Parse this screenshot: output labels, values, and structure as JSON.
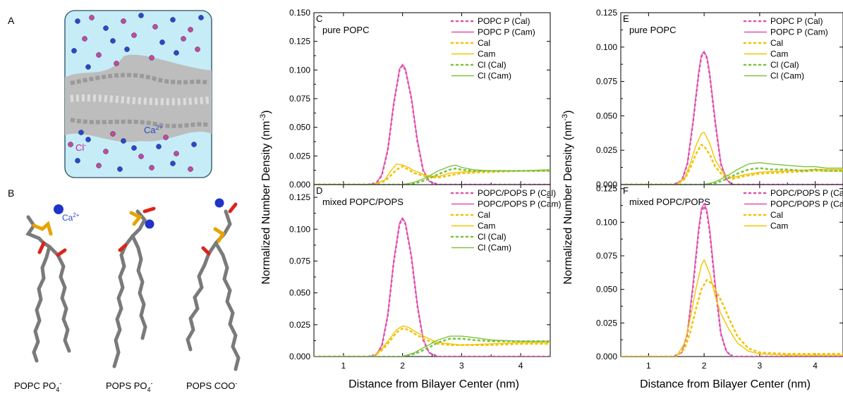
{
  "panel_labels": {
    "a": "A",
    "b": "B"
  },
  "illustration_labels": {
    "ca_ion": "Ca2+",
    "cl_ion": "Cl-",
    "ca_ion_b": "Ca2+",
    "lipid_captions": [
      "POPC PO4-",
      "POPS PO4-",
      "POPS COO-"
    ]
  },
  "colors": {
    "popc": "#e052ad",
    "cal": "#f2c400",
    "cl": "#7cc242",
    "water": "#bde7f4",
    "ca": "#2a48c8",
    "cl_ion": "#c04b9a",
    "lipid": "#cfcfcf"
  },
  "shared": {
    "ylabel_main": "Normalized Number Density (nm",
    "ylabel_sup": "-3",
    "ylabel_tail": ")",
    "xlabel": "Distance from Bilayer Center (nm)"
  },
  "chart_data": [
    {
      "id": "C",
      "type": "line",
      "panel_label": "C",
      "annotation": "pure POPC",
      "xlim": [
        0.5,
        4.5
      ],
      "ylim": [
        0,
        0.15
      ],
      "xticks": [
        1,
        2,
        3,
        4
      ],
      "yticks": [
        0,
        0.025,
        0.05,
        0.075,
        0.1,
        0.125,
        0.15
      ],
      "ytick_labels": [
        "0.000",
        "0.025",
        "0.050",
        "0.075",
        "0.100",
        "0.125",
        "0.150"
      ],
      "xtick_labels": [
        "1",
        "2",
        "3",
        "4"
      ],
      "series": [
        {
          "name": "POPC P (Cal)",
          "color_key": "popc",
          "dashed": true,
          "x": [
            0.5,
            1.4,
            1.55,
            1.65,
            1.75,
            1.85,
            1.95,
            2.0,
            2.05,
            2.15,
            2.25,
            2.35,
            2.45,
            2.6,
            4.5
          ],
          "y": [
            0,
            0,
            0.001,
            0.008,
            0.03,
            0.07,
            0.1,
            0.104,
            0.1,
            0.075,
            0.038,
            0.012,
            0.003,
            0,
            0
          ]
        },
        {
          "name": "POPC P (Cam)",
          "color_key": "popc",
          "dashed": false,
          "x": [
            0.5,
            1.4,
            1.55,
            1.65,
            1.75,
            1.85,
            1.95,
            2.0,
            2.05,
            2.15,
            2.25,
            2.35,
            2.45,
            2.6,
            4.5
          ],
          "y": [
            0,
            0,
            0.001,
            0.009,
            0.031,
            0.071,
            0.101,
            0.105,
            0.101,
            0.076,
            0.039,
            0.013,
            0.003,
            0,
            0
          ]
        },
        {
          "name": "Cal",
          "color_key": "cal",
          "dashed": true,
          "x": [
            0.5,
            1.5,
            1.7,
            1.8,
            1.9,
            2.0,
            2.1,
            2.2,
            2.4,
            2.6,
            2.8,
            3.0,
            3.5,
            4.0,
            4.5
          ],
          "y": [
            0,
            0,
            0.003,
            0.008,
            0.013,
            0.016,
            0.013,
            0.01,
            0.007,
            0.006,
            0.008,
            0.01,
            0.011,
            0.012,
            0.012
          ]
        },
        {
          "name": "Cam",
          "color_key": "cal",
          "dashed": false,
          "x": [
            0.5,
            1.5,
            1.7,
            1.8,
            1.9,
            2.0,
            2.1,
            2.2,
            2.4,
            2.6,
            2.8,
            3.0,
            3.5,
            4.0,
            4.5
          ],
          "y": [
            0,
            0,
            0.004,
            0.012,
            0.018,
            0.017,
            0.015,
            0.012,
            0.008,
            0.007,
            0.01,
            0.011,
            0.012,
            0.012,
            0.013
          ]
        },
        {
          "name": "Cl (Cal)",
          "color_key": "cl",
          "dashed": true,
          "x": [
            0.5,
            2.0,
            2.2,
            2.4,
            2.6,
            2.8,
            2.9,
            3.0,
            3.2,
            3.5,
            4.0,
            4.5
          ],
          "y": [
            0,
            0,
            0.001,
            0.004,
            0.009,
            0.013,
            0.014,
            0.013,
            0.012,
            0.012,
            0.012,
            0.012
          ]
        },
        {
          "name": "Cl (Cam)",
          "color_key": "cl",
          "dashed": false,
          "x": [
            0.5,
            2.0,
            2.2,
            2.4,
            2.6,
            2.8,
            2.9,
            3.0,
            3.2,
            3.5,
            4.0,
            4.5
          ],
          "y": [
            0,
            0,
            0.002,
            0.006,
            0.012,
            0.016,
            0.017,
            0.015,
            0.013,
            0.012,
            0.012,
            0.013
          ]
        }
      ]
    },
    {
      "id": "D",
      "type": "line",
      "panel_label": "D",
      "annotation": "mixed POPC/POPS",
      "xlim": [
        0.5,
        4.5
      ],
      "ylim": [
        0,
        0.135
      ],
      "xticks": [
        1,
        2,
        3,
        4
      ],
      "yticks": [
        0,
        0.025,
        0.05,
        0.075,
        0.1,
        0.125
      ],
      "ytick_labels": [
        "0.000",
        "0.025",
        "0.050",
        "0.075",
        "0.100",
        "0.125"
      ],
      "xtick_labels": [
        "1",
        "2",
        "3",
        "4"
      ],
      "series": [
        {
          "name": "POPC/POPS P (Cal)",
          "color_key": "popc",
          "dashed": true,
          "x": [
            0.5,
            1.4,
            1.55,
            1.65,
            1.75,
            1.85,
            1.95,
            2.0,
            2.05,
            2.15,
            2.25,
            2.35,
            2.45,
            2.6,
            4.5
          ],
          "y": [
            0,
            0,
            0.001,
            0.008,
            0.032,
            0.074,
            0.104,
            0.108,
            0.104,
            0.078,
            0.04,
            0.013,
            0.003,
            0,
            0
          ]
        },
        {
          "name": "POPC/POPS P (Cam)",
          "color_key": "popc",
          "dashed": false,
          "x": [
            0.5,
            1.4,
            1.55,
            1.65,
            1.75,
            1.85,
            1.95,
            2.0,
            2.05,
            2.15,
            2.25,
            2.35,
            2.45,
            2.6,
            4.5
          ],
          "y": [
            0,
            0,
            0.001,
            0.009,
            0.033,
            0.075,
            0.105,
            0.109,
            0.105,
            0.079,
            0.041,
            0.014,
            0.003,
            0,
            0
          ]
        },
        {
          "name": "Cal",
          "color_key": "cal",
          "dashed": true,
          "x": [
            0.5,
            1.5,
            1.65,
            1.8,
            1.9,
            2.0,
            2.1,
            2.2,
            2.4,
            2.6,
            2.8,
            3.0,
            3.5,
            4.0,
            4.5
          ],
          "y": [
            0,
            0,
            0.005,
            0.013,
            0.019,
            0.022,
            0.021,
            0.018,
            0.013,
            0.01,
            0.009,
            0.009,
            0.009,
            0.01,
            0.01
          ]
        },
        {
          "name": "Cam",
          "color_key": "cal",
          "dashed": false,
          "x": [
            0.5,
            1.5,
            1.65,
            1.8,
            1.9,
            2.0,
            2.1,
            2.2,
            2.4,
            2.6,
            2.8,
            3.0,
            3.5,
            4.0,
            4.5
          ],
          "y": [
            0,
            0,
            0.006,
            0.015,
            0.021,
            0.024,
            0.023,
            0.02,
            0.015,
            0.011,
            0.01,
            0.009,
            0.01,
            0.011,
            0.011
          ]
        },
        {
          "name": "Cl (Cal)",
          "color_key": "cl",
          "dashed": true,
          "x": [
            0.5,
            2.0,
            2.2,
            2.4,
            2.6,
            2.8,
            3.0,
            3.2,
            3.5,
            4.0,
            4.5
          ],
          "y": [
            0,
            0,
            0.002,
            0.006,
            0.011,
            0.014,
            0.014,
            0.013,
            0.012,
            0.012,
            0.012
          ]
        },
        {
          "name": "Cl (Cam)",
          "color_key": "cl",
          "dashed": false,
          "x": [
            0.5,
            2.0,
            2.2,
            2.4,
            2.6,
            2.8,
            3.0,
            3.2,
            3.5,
            4.0,
            4.5
          ],
          "y": [
            0,
            0,
            0.003,
            0.008,
            0.013,
            0.016,
            0.016,
            0.015,
            0.013,
            0.012,
            0.012
          ]
        }
      ]
    },
    {
      "id": "E",
      "type": "line",
      "panel_label": "E",
      "annotation": "pure POPC",
      "xlim": [
        0.5,
        4.5
      ],
      "ylim": [
        0,
        0.125
      ],
      "xticks": [
        1,
        2,
        3,
        4
      ],
      "yticks": [
        0,
        0.025,
        0.05,
        0.075,
        0.1,
        0.125
      ],
      "ytick_labels": [
        "0.000",
        "0.025",
        "0.050",
        "0.075",
        "0.100",
        "0.125"
      ],
      "xtick_labels": [
        "1",
        "2",
        "3",
        "4"
      ],
      "series": [
        {
          "name": "POPC P (Cal)",
          "color_key": "popc",
          "dashed": true,
          "x": [
            0.5,
            1.45,
            1.6,
            1.7,
            1.8,
            1.9,
            1.95,
            2.0,
            2.05,
            2.1,
            2.2,
            2.3,
            2.4,
            2.5,
            4.5
          ],
          "y": [
            0,
            0,
            0.003,
            0.015,
            0.045,
            0.08,
            0.093,
            0.096,
            0.092,
            0.08,
            0.045,
            0.015,
            0.004,
            0,
            0
          ]
        },
        {
          "name": "POPC P (Cam)",
          "color_key": "popc",
          "dashed": false,
          "x": [
            0.5,
            1.45,
            1.6,
            1.7,
            1.8,
            1.9,
            1.95,
            2.0,
            2.05,
            2.1,
            2.2,
            2.3,
            2.4,
            2.5,
            4.5
          ],
          "y": [
            0,
            0,
            0.003,
            0.016,
            0.046,
            0.081,
            0.094,
            0.097,
            0.093,
            0.081,
            0.046,
            0.016,
            0.004,
            0,
            0
          ]
        },
        {
          "name": "Cal",
          "color_key": "cal",
          "dashed": true,
          "x": [
            0.5,
            1.5,
            1.65,
            1.75,
            1.85,
            1.95,
            2.0,
            2.1,
            2.2,
            2.35,
            2.5,
            2.7,
            3.0,
            3.5,
            4.0,
            4.5
          ],
          "y": [
            0,
            0,
            0.004,
            0.012,
            0.022,
            0.029,
            0.028,
            0.022,
            0.013,
            0.006,
            0.004,
            0.006,
            0.008,
            0.009,
            0.01,
            0.01
          ]
        },
        {
          "name": "Cam",
          "color_key": "cal",
          "dashed": false,
          "x": [
            0.5,
            1.5,
            1.65,
            1.75,
            1.85,
            1.95,
            2.0,
            2.1,
            2.2,
            2.35,
            2.5,
            2.7,
            3.0,
            3.5,
            4.0,
            4.5
          ],
          "y": [
            0,
            0,
            0.005,
            0.015,
            0.028,
            0.037,
            0.038,
            0.03,
            0.018,
            0.008,
            0.005,
            0.007,
            0.009,
            0.01,
            0.011,
            0.011
          ]
        },
        {
          "name": "Cl (Cal)",
          "color_key": "cl",
          "dashed": true,
          "x": [
            0.5,
            2.0,
            2.2,
            2.4,
            2.6,
            2.8,
            3.0,
            3.2,
            3.5,
            3.8,
            4.0,
            4.2,
            4.5
          ],
          "y": [
            0,
            0,
            0.001,
            0.004,
            0.008,
            0.011,
            0.012,
            0.011,
            0.011,
            0.01,
            0.011,
            0.01,
            0.01
          ]
        },
        {
          "name": "Cl (Cam)",
          "color_key": "cl",
          "dashed": false,
          "x": [
            0.5,
            2.0,
            2.2,
            2.4,
            2.6,
            2.8,
            3.0,
            3.2,
            3.5,
            3.8,
            4.0,
            4.2,
            4.5
          ],
          "y": [
            0,
            0,
            0.002,
            0.006,
            0.011,
            0.015,
            0.016,
            0.015,
            0.014,
            0.013,
            0.013,
            0.012,
            0.012
          ]
        }
      ]
    },
    {
      "id": "F",
      "type": "line",
      "panel_label": "F",
      "annotation": "mixed POPC/POPS",
      "xlim": [
        0.5,
        4.5
      ],
      "ylim": [
        0,
        0.128
      ],
      "xticks": [
        1,
        2,
        3,
        4
      ],
      "yticks": [
        0,
        0.025,
        0.05,
        0.075,
        0.1,
        0.125
      ],
      "ytick_labels": [
        "0.000",
        "0.025",
        "0.050",
        "0.075",
        "0.100",
        "0.125"
      ],
      "xtick_labels": [
        "1",
        "2",
        "3",
        "4"
      ],
      "series": [
        {
          "name": "POPC/POPS P (Cal)",
          "color_key": "popc",
          "dashed": true,
          "x": [
            0.5,
            1.45,
            1.6,
            1.7,
            1.8,
            1.9,
            1.95,
            2.0,
            2.05,
            2.1,
            2.2,
            2.3,
            2.4,
            2.5,
            4.5
          ],
          "y": [
            0,
            0,
            0.003,
            0.017,
            0.052,
            0.093,
            0.108,
            0.112,
            0.107,
            0.093,
            0.052,
            0.017,
            0.004,
            0,
            0
          ]
        },
        {
          "name": "POPC/POPS P (Cam)",
          "color_key": "popc",
          "dashed": false,
          "x": [
            0.5,
            1.45,
            1.6,
            1.7,
            1.8,
            1.9,
            1.95,
            2.0,
            2.05,
            2.1,
            2.2,
            2.3,
            2.4,
            2.5,
            4.5
          ],
          "y": [
            0,
            0,
            0.003,
            0.018,
            0.054,
            0.095,
            0.11,
            0.114,
            0.109,
            0.095,
            0.054,
            0.018,
            0.004,
            0,
            0
          ]
        },
        {
          "name": "Cal",
          "color_key": "cal",
          "dashed": true,
          "x": [
            0.5,
            1.5,
            1.65,
            1.75,
            1.85,
            1.95,
            2.05,
            2.15,
            2.25,
            2.35,
            2.45,
            2.6,
            2.8,
            3.0,
            3.5,
            4.0,
            4.5
          ],
          "y": [
            0,
            0,
            0.006,
            0.018,
            0.035,
            0.05,
            0.057,
            0.054,
            0.046,
            0.038,
            0.028,
            0.015,
            0.006,
            0.003,
            0.002,
            0.002,
            0.002
          ]
        },
        {
          "name": "Cam",
          "color_key": "cal",
          "dashed": false,
          "x": [
            0.5,
            1.5,
            1.65,
            1.75,
            1.85,
            1.95,
            2.0,
            2.1,
            2.2,
            2.3,
            2.45,
            2.6,
            2.8,
            3.0,
            3.5,
            4.0,
            4.5
          ],
          "y": [
            0,
            0,
            0.01,
            0.028,
            0.05,
            0.068,
            0.072,
            0.062,
            0.045,
            0.032,
            0.02,
            0.01,
            0.004,
            0.002,
            0.001,
            0.001,
            0.001
          ]
        }
      ]
    }
  ]
}
